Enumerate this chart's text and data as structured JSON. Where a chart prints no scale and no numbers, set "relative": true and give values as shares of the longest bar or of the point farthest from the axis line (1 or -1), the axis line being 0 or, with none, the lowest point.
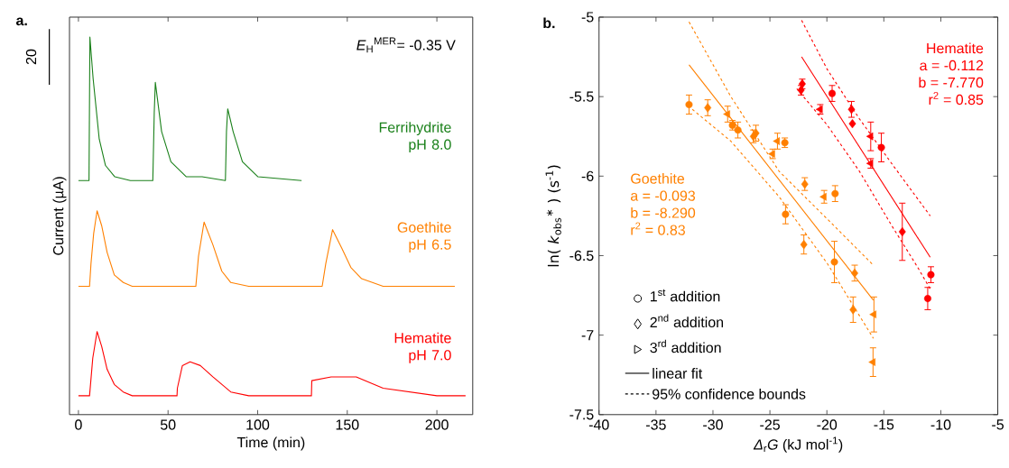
{
  "chart_data": [
    {
      "type": "line",
      "title": "a.",
      "xlabel": "Time (min)",
      "ylabel": "Current (µA)",
      "relative": true,
      "xlim": [
        -5,
        220
      ],
      "xticks": [
        0,
        50,
        100,
        150,
        200
      ],
      "tick_labels": "x",
      "annotations": [
        "*E*$_{H}$$^{MER}$= -0.35 V",
        "20"
      ],
      "series": [
        {
          "name": "Ferrihydrite pH 8.0",
          "color": "#1a801a",
          "x": [
            0,
            5.9,
            6.4,
            8.2,
            11.6,
            15.1,
            20.3,
            29,
            41.5,
            42.3,
            42.9,
            46.4,
            51.6,
            60.2,
            69,
            82,
            82.6,
            83.3,
            86.3,
            91.5,
            100.2,
            124.5
          ],
          "values": [
            0.62,
            0.62,
            1.0,
            0.89,
            0.73,
            0.66,
            0.63,
            0.62,
            0.62,
            0.8,
            0.88,
            0.75,
            0.67,
            0.63,
            0.63,
            0.62,
            0.75,
            0.81,
            0.75,
            0.67,
            0.63,
            0.62
          ]
        },
        {
          "name": "Goethite pH 6.5",
          "color": "#ff8000",
          "x": [
            0,
            6.2,
            7,
            8.5,
            10.4,
            13,
            16,
            20,
            25,
            30,
            65.5,
            67,
            70.1,
            75,
            80,
            85,
            95,
            136,
            138,
            141.8,
            147,
            152,
            158,
            170,
            210
          ],
          "values": [
            0.34,
            0.34,
            0.4,
            0.48,
            0.54,
            0.5,
            0.43,
            0.37,
            0.35,
            0.34,
            0.34,
            0.42,
            0.51,
            0.45,
            0.38,
            0.35,
            0.34,
            0.34,
            0.4,
            0.49,
            0.44,
            0.39,
            0.36,
            0.34,
            0.34
          ]
        },
        {
          "name": "Hematite pH 7.0",
          "color": "#ff0000",
          "x": [
            0,
            6.2,
            8,
            10.4,
            13,
            16,
            20,
            25,
            30,
            55,
            55.2,
            58,
            62.3,
            68,
            75,
            85,
            95,
            130,
            130.2,
            141,
            155,
            170,
            185,
            200,
            216
          ],
          "values": [
            0.05,
            0.05,
            0.15,
            0.22,
            0.18,
            0.12,
            0.08,
            0.06,
            0.05,
            0.05,
            0.07,
            0.13,
            0.14,
            0.13,
            0.1,
            0.06,
            0.05,
            0.05,
            0.09,
            0.1,
            0.1,
            0.07,
            0.06,
            0.05,
            0.05
          ]
        }
      ]
    },
    {
      "type": "scatter",
      "title": "b.",
      "xlabel": "*Δ*$_{r}$*G*  (kJ mol$^{-1}$)",
      "ylabel": "ln( *k*$_{obs}$$^{∗}$ ) (s$^{-1}$)",
      "xlim": [
        -40,
        -5
      ],
      "ylim": [
        -7.5,
        -5
      ],
      "xticks": [
        -40,
        -35,
        -30,
        -25,
        -20,
        -15,
        -10,
        -5
      ],
      "yticks": [
        -7.5,
        -7,
        -6.5,
        -6,
        -5.5,
        -5
      ],
      "annotations": [
        "Goethite",
        "a = -0.093",
        "b = -8.290",
        "r$^{2}$ = 0.83",
        "Hematite",
        "a = -0.112",
        "b = -7.770",
        "r$^{2}$ = 0.85",
        "1$^{st}$ addition",
        "2$^{nd}$ addition",
        "3$^{rd}$ addition",
        "linear fit",
        "95% confidence bounds"
      ],
      "series": [
        {
          "color": "#ff8000",
          "marker": "circle",
          "x": [
            -32.1,
            -27.81,
            -23.63,
            -19.34,
            -28.29,
            -23.69,
            -19.28
          ],
          "values": [
            -5.55,
            -5.71,
            -6.24,
            -6.54,
            -5.68,
            -5.79,
            -6.11
          ],
          "errors": [
            0.06,
            0.05,
            0.06,
            0.13,
            0.03,
            0.03,
            0.05
          ]
        },
        {
          "color": "#ff8000",
          "marker": "diamond",
          "x": [
            -30.46,
            -26.23,
            -22.02,
            -17.7,
            -26.45,
            -21.94,
            -17.56
          ],
          "values": [
            -5.57,
            -5.73,
            -6.43,
            -6.84,
            -5.75,
            -6.05,
            -6.61
          ],
          "errors": [
            0.05,
            0.05,
            0.06,
            0.08,
            0.04,
            0.04,
            0.05
          ]
        },
        {
          "color": "#ff8000",
          "marker": "triangle",
          "x": [
            -28.71,
            -24.34,
            -15.95,
            -24.76,
            -20.24,
            -15.87
          ],
          "values": [
            -5.61,
            -5.78,
            -7.17,
            -5.86,
            -6.13,
            -6.87
          ],
          "errors": [
            0.05,
            0.05,
            0.09,
            0.03,
            0.04,
            0.11
          ]
        },
        {
          "color": "#ff0000",
          "marker": "circle",
          "x": [
            -19.54,
            -15.22,
            -11.15,
            -10.87
          ],
          "values": [
            -5.48,
            -5.82,
            -6.77,
            -6.62
          ],
          "errors": [
            0.05,
            0.09,
            0.07,
            0.05
          ]
        },
        {
          "color": "#ff0000",
          "marker": "diamond",
          "x": [
            -22.16,
            -17.76,
            -22.27,
            -17.84,
            -13.38
          ],
          "values": [
            -5.42,
            -5.67,
            -5.46,
            -5.58,
            -6.35
          ],
          "errors": [
            0.03,
            null,
            0.03,
            0.05,
            0.18
          ]
        },
        {
          "color": "#ff0000",
          "marker": "triangle",
          "x": [
            -16.15,
            -20.58,
            -16.15
          ],
          "values": [
            -5.92,
            -5.58,
            -5.75
          ],
          "errors": [
            0.03,
            0.03,
            0.09
          ]
        },
        {
          "type": "line",
          "line_style": "solid",
          "color": "#ff8000",
          "x": [
            -32.1,
            -15.92
          ],
          "values": [
            -5.3,
            -6.78
          ]
        },
        {
          "type": "line",
          "line_style": "dashed",
          "color": "#ff8000",
          "x": [
            -32.1,
            -28.43,
            -24.19,
            -19.96,
            -15.92
          ],
          "values": [
            -5.03,
            -5.5,
            -5.97,
            -6.27,
            -6.56
          ]
        },
        {
          "type": "line",
          "line_style": "dashed",
          "color": "#ff8000",
          "x": [
            -31.81,
            -28.43,
            -24.19,
            -19.96,
            -15.92
          ],
          "values": [
            -5.58,
            -5.78,
            -6.13,
            -6.55,
            -7.02
          ]
        },
        {
          "type": "line",
          "line_style": "solid",
          "color": "#ff0000",
          "x": [
            -22.22,
            -10.93
          ],
          "values": [
            -5.25,
            -6.51
          ]
        },
        {
          "type": "line",
          "line_style": "dashed",
          "color": "#ff0000",
          "x": [
            -22.22,
            -19.96,
            -17.14,
            -14.32,
            -10.93
          ],
          "values": [
            -5.02,
            -5.33,
            -5.64,
            -5.92,
            -6.25
          ]
        },
        {
          "type": "line",
          "line_style": "dashed",
          "color": "#ff0000",
          "x": [
            -22.64,
            -19.96,
            -17.14,
            -14.32,
            -12.06,
            -10.93
          ],
          "values": [
            -5.45,
            -5.68,
            -5.97,
            -6.31,
            -6.57,
            -6.71
          ]
        }
      ]
    }
  ]
}
